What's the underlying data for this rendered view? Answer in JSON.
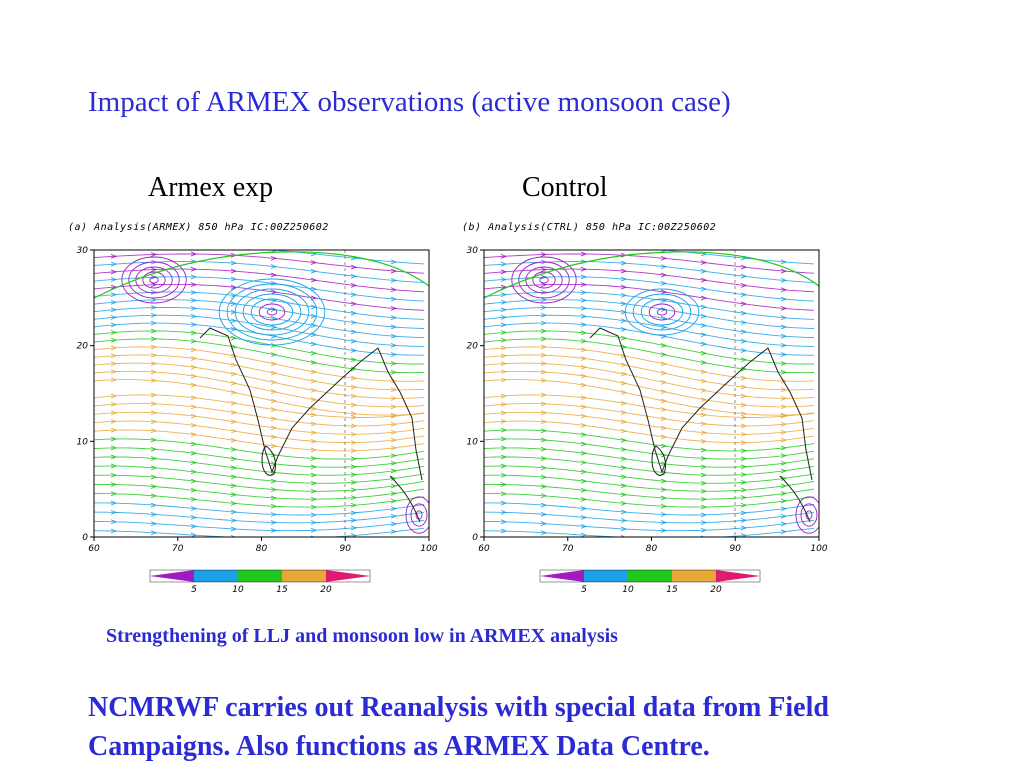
{
  "title": "Impact of ARMEX observations (active monsoon case)",
  "panels": [
    {
      "label": "Armex exp",
      "caption": "(a)  Analysis(ARMEX) 850 hPa IC:00Z250602",
      "x_ticks": [
        "60",
        "70",
        "80",
        "90",
        "100"
      ],
      "y_ticks": [
        "0",
        "10",
        "20",
        "30"
      ],
      "legend_ticks": [
        "5",
        "10",
        "15",
        "20"
      ]
    },
    {
      "label": "Control",
      "caption": "(b)  Analysis(CTRL) 850 hPa IC:00Z250602",
      "x_ticks": [
        "60",
        "70",
        "80",
        "90",
        "100"
      ],
      "y_ticks": [
        "0",
        "10",
        "20",
        "30"
      ],
      "legend_ticks": [
        "5",
        "10",
        "15",
        "20"
      ]
    }
  ],
  "speed_colors": [
    "#a11ac2",
    "#1aa1e6",
    "#22c81e",
    "#e8a838",
    "#e01a6e"
  ],
  "caption": "Strengthening of LLJ and monsoon low in ARMEX analysis",
  "note": {
    "line1": "NCMRWF carries out Reanalysis with special data from Field",
    "line2": "Campaigns. Also functions as ARMEX Data Centre."
  }
}
